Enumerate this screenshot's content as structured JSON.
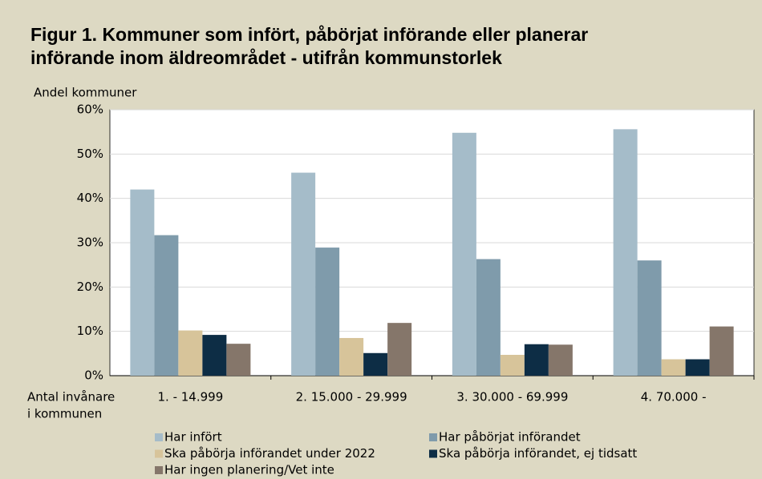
{
  "chart_data": {
    "type": "bar",
    "title": [
      "Figur 1. Kommuner som infört, påbörjat införande eller planerar",
      "införande inom äldreområdet - utifrån kommunstorlek"
    ],
    "y_label": "Andel kommuner",
    "x_label": [
      "Antal invånare",
      "i kommunen"
    ],
    "categories": [
      "1. - 14.999",
      "2. 15.000 - 29.999",
      "3. 30.000 - 69.999",
      "4. 70.000 -"
    ],
    "series": [
      {
        "name": "Har infört",
        "color": "#a5bcc9",
        "values": [
          42,
          45.8,
          54.8,
          55.6
        ]
      },
      {
        "name": "Har påbörjat införandet",
        "color": "#7f9bab",
        "values": [
          31.7,
          28.9,
          26.3,
          26.0
        ]
      },
      {
        "name": "Ska påbörja införandet under 2022",
        "color": "#d7c49a",
        "values": [
          10.2,
          8.5,
          4.7,
          3.7
        ]
      },
      {
        "name": "Ska påbörja införandet, ej tidsatt",
        "color": "#0d2d45",
        "values": [
          9.2,
          5.1,
          7.1,
          3.7
        ]
      },
      {
        "name": "Har ingen planering/Vet inte",
        "color": "#85766a",
        "values": [
          7.2,
          11.9,
          7.0,
          11.1
        ]
      }
    ],
    "ylim": [
      0,
      60
    ],
    "yticks": [
      {
        "value": 0,
        "label": "0%"
      },
      {
        "value": 10,
        "label": "10%"
      },
      {
        "value": 20,
        "label": "20%"
      },
      {
        "value": 30,
        "label": "30%"
      },
      {
        "value": 40,
        "label": "40%"
      },
      {
        "value": 50,
        "label": "50%"
      },
      {
        "value": 60,
        "label": "60%"
      }
    ],
    "grid": true
  }
}
